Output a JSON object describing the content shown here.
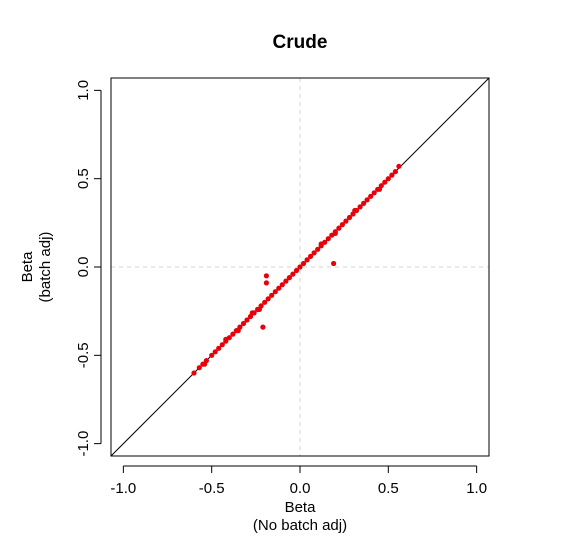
{
  "chart_data": {
    "type": "scatter",
    "title": "Crude",
    "xlabel": "Beta",
    "xlabel_sub": "(No batch adj)",
    "ylabel": "Beta",
    "ylabel_sub": "(batch adj)",
    "xlim": [
      -1.07,
      1.07
    ],
    "ylim": [
      -1.07,
      1.07
    ],
    "x_ticks": [
      -1.0,
      -0.5,
      0.0,
      0.5,
      1.0
    ],
    "x_tick_labels": [
      "-1.0",
      "-0.5",
      "0.0",
      "0.5",
      "1.0"
    ],
    "y_ticks": [
      -1.0,
      -0.5,
      0.0,
      0.5,
      1.0
    ],
    "y_tick_labels": [
      "-1.0",
      "-0.5",
      "0.0",
      "0.5",
      "1.0"
    ],
    "reference_lines": {
      "identity": true,
      "x_zero": true,
      "y_zero": true
    },
    "grid": false,
    "legend": "none",
    "point_color": "#e8000b",
    "series": [
      {
        "x": [
          -0.6,
          -0.57,
          -0.55,
          -0.53,
          -0.5,
          -0.48,
          -0.46,
          -0.44,
          -0.42,
          -0.4,
          -0.38,
          -0.36,
          -0.34,
          -0.32,
          -0.3,
          -0.28,
          -0.26,
          -0.24,
          -0.22,
          -0.2,
          -0.18,
          -0.16,
          -0.14,
          -0.12,
          -0.1,
          -0.08,
          -0.06,
          -0.04,
          -0.02,
          0.0,
          0.02,
          0.04,
          0.06,
          0.08,
          0.1,
          0.12,
          0.14,
          0.16,
          0.18,
          0.2,
          0.22,
          0.24,
          0.26,
          0.28,
          0.3,
          0.32,
          0.34,
          0.36,
          0.38,
          0.4,
          0.42,
          0.44,
          0.46,
          0.48,
          0.5,
          0.52,
          0.54,
          0.56,
          -0.19,
          -0.19,
          -0.21,
          0.19,
          -0.54,
          -0.42,
          -0.35,
          -0.27,
          -0.23,
          0.12,
          0.2,
          0.31,
          0.45
        ],
        "y": [
          -0.6,
          -0.57,
          -0.55,
          -0.53,
          -0.5,
          -0.48,
          -0.46,
          -0.44,
          -0.42,
          -0.4,
          -0.38,
          -0.36,
          -0.34,
          -0.32,
          -0.3,
          -0.28,
          -0.26,
          -0.24,
          -0.22,
          -0.2,
          -0.18,
          -0.16,
          -0.14,
          -0.12,
          -0.1,
          -0.08,
          -0.06,
          -0.04,
          -0.02,
          0.0,
          0.02,
          0.04,
          0.06,
          0.08,
          0.1,
          0.12,
          0.14,
          0.16,
          0.18,
          0.2,
          0.22,
          0.24,
          0.26,
          0.28,
          0.3,
          0.32,
          0.34,
          0.36,
          0.38,
          0.4,
          0.42,
          0.44,
          0.46,
          0.48,
          0.5,
          0.52,
          0.54,
          0.57,
          -0.05,
          -0.09,
          -0.34,
          0.02,
          -0.55,
          -0.41,
          -0.36,
          -0.26,
          -0.24,
          0.13,
          0.19,
          0.32,
          0.44
        ]
      }
    ]
  }
}
